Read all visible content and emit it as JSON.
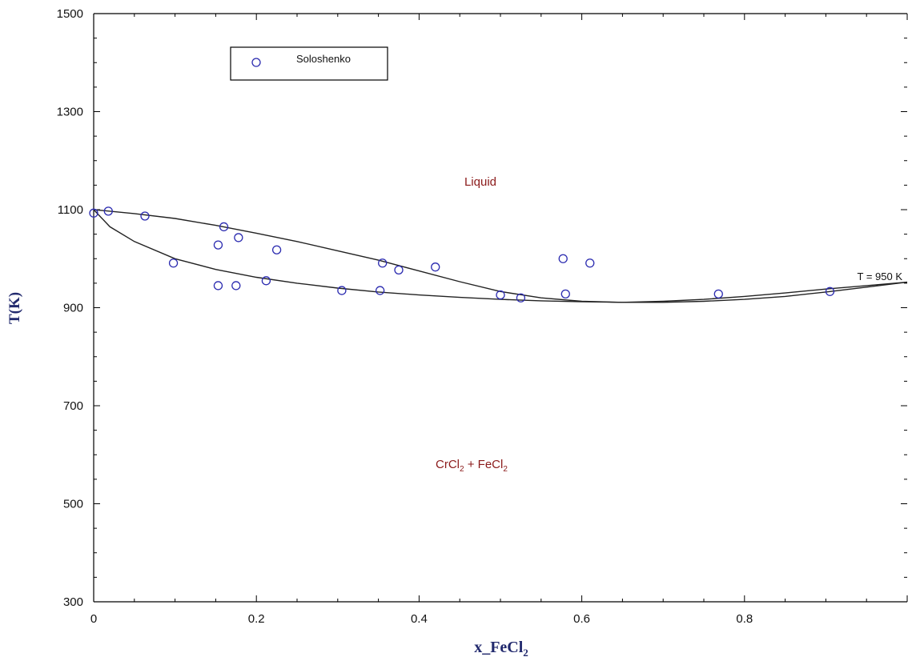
{
  "chart_data": {
    "type": "scatter",
    "xlabel": "x_FeCl",
    "xlabel_subscript": "2",
    "ylabel": "T(K)",
    "xlim": [
      0,
      1
    ],
    "ylim": [
      300,
      1500
    ],
    "x_ticks": [
      0,
      0.2,
      0.4,
      0.6,
      0.8
    ],
    "x_tick_labels": [
      "0",
      "0.2",
      "0.4",
      "0.6",
      "0.8"
    ],
    "y_ticks": [
      300,
      500,
      700,
      900,
      1100,
      1300,
      1500
    ],
    "y_tick_labels": [
      "300",
      "500",
      "700",
      "900",
      "1100",
      "1300",
      "1500"
    ],
    "grid": false,
    "legend": {
      "placement": "top-left",
      "entries": [
        "Soloshenko"
      ]
    },
    "series": [
      {
        "name": "Soloshenko",
        "marker": "open-circle",
        "color": "#2b2bb0",
        "points": [
          [
            0.0,
            1093
          ],
          [
            0.018,
            1097
          ],
          [
            0.063,
            1087
          ],
          [
            0.098,
            991
          ],
          [
            0.153,
            1028
          ],
          [
            0.16,
            1065
          ],
          [
            0.178,
            1043
          ],
          [
            0.153,
            945
          ],
          [
            0.175,
            945
          ],
          [
            0.212,
            955
          ],
          [
            0.225,
            1018
          ],
          [
            0.305,
            935
          ],
          [
            0.355,
            991
          ],
          [
            0.352,
            935
          ],
          [
            0.375,
            977
          ],
          [
            0.42,
            983
          ],
          [
            0.5,
            926
          ],
          [
            0.525,
            920
          ],
          [
            0.577,
            1000
          ],
          [
            0.58,
            928
          ],
          [
            0.61,
            991
          ],
          [
            0.768,
            928
          ],
          [
            0.905,
            933
          ]
        ]
      }
    ],
    "liquidus": [
      [
        0,
        1100
      ],
      [
        0.05,
        1092
      ],
      [
        0.1,
        1082
      ],
      [
        0.15,
        1068
      ],
      [
        0.2,
        1052
      ],
      [
        0.25,
        1035
      ],
      [
        0.3,
        1016
      ],
      [
        0.35,
        997
      ],
      [
        0.4,
        975
      ],
      [
        0.45,
        953
      ],
      [
        0.5,
        933
      ],
      [
        0.55,
        920
      ],
      [
        0.6,
        913
      ],
      [
        0.65,
        911
      ],
      [
        0.7,
        913
      ],
      [
        0.75,
        917
      ],
      [
        0.8,
        923
      ],
      [
        0.85,
        930
      ],
      [
        0.9,
        938
      ],
      [
        0.95,
        945
      ],
      [
        1.0,
        952
      ]
    ],
    "solidus": [
      [
        0,
        1100
      ],
      [
        0.02,
        1065
      ],
      [
        0.05,
        1035
      ],
      [
        0.1,
        1000
      ],
      [
        0.15,
        978
      ],
      [
        0.2,
        962
      ],
      [
        0.25,
        950
      ],
      [
        0.3,
        940
      ],
      [
        0.35,
        932
      ],
      [
        0.4,
        926
      ],
      [
        0.45,
        921
      ],
      [
        0.5,
        917
      ],
      [
        0.55,
        914
      ],
      [
        0.6,
        912
      ],
      [
        0.65,
        911
      ],
      [
        0.7,
        911
      ],
      [
        0.75,
        913
      ],
      [
        0.8,
        917
      ],
      [
        0.85,
        923
      ],
      [
        0.9,
        932
      ],
      [
        0.95,
        942
      ],
      [
        1.0,
        952
      ]
    ],
    "annotations": {
      "liquid": "Liquid",
      "solid_part1": "CrCl",
      "solid_sub1": "2",
      "solid_part2": " + FeCl",
      "solid_sub2": "2",
      "temperature": "T = 950 K"
    },
    "colors": {
      "axis": "#000000",
      "curve": "#222222",
      "marker": "#2b2bb0",
      "region_label": "#8b1a1a",
      "axis_title": "#222a6e"
    }
  }
}
